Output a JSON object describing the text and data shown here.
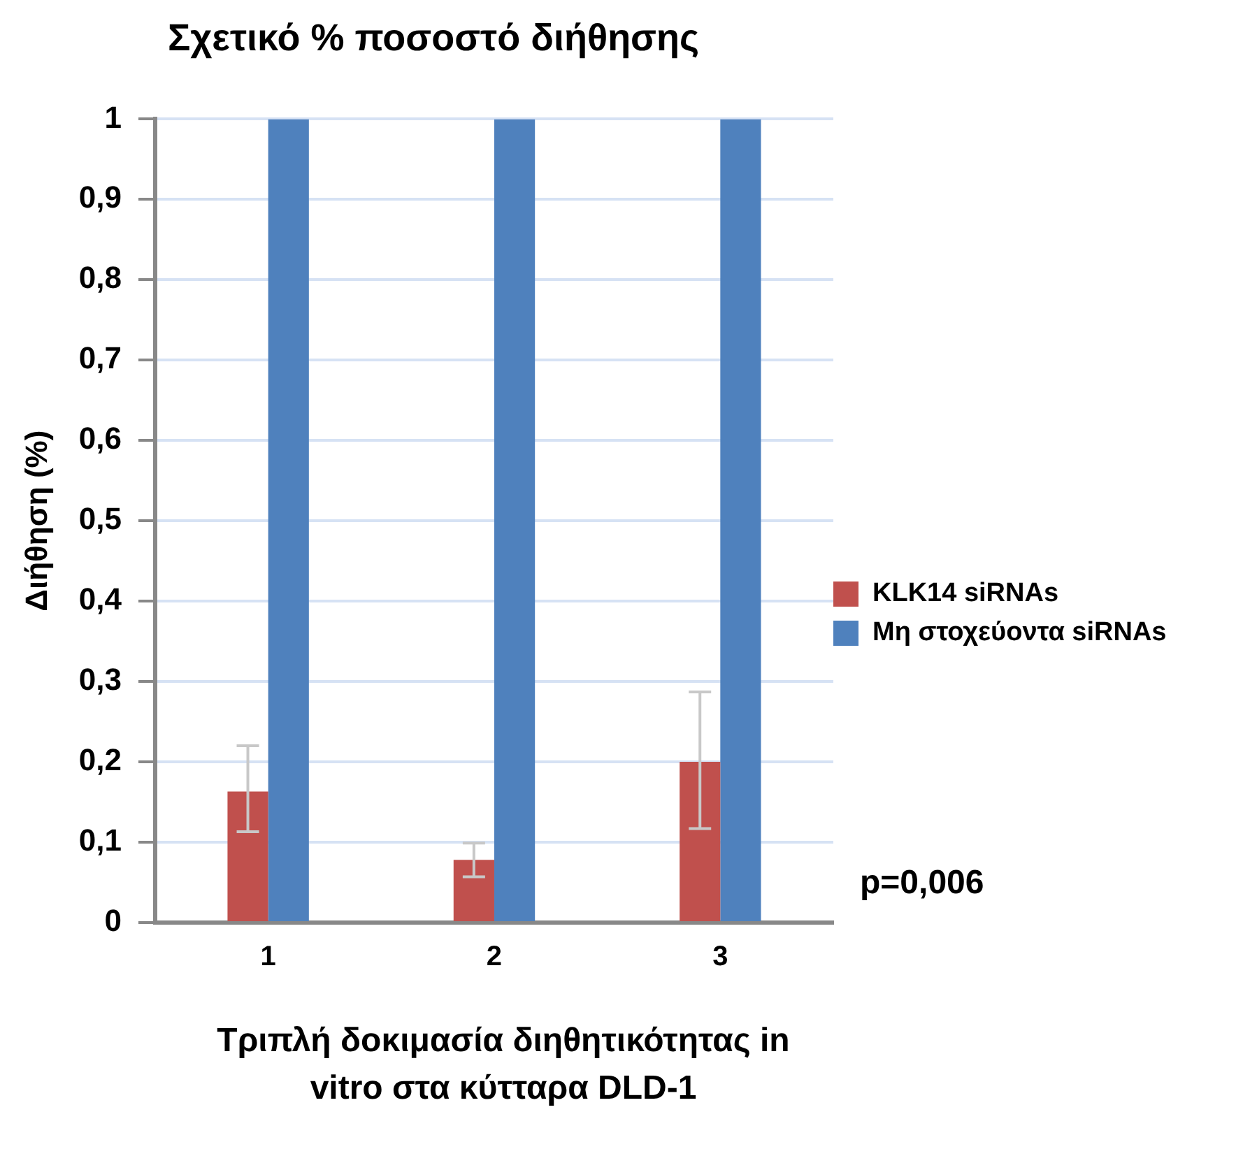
{
  "chart_data": {
    "type": "bar",
    "title": "Σχετικό % ποσοστό διήθησης",
    "xlabel": "Τριπλή δοκιμασία διηθητικότητας in vitro στα κύτταρα DLD-1",
    "ylabel": "Διήθηση (%)",
    "categories": [
      "1",
      "2",
      "3"
    ],
    "series": [
      {
        "name": "KLK14 siRNAs",
        "color": "#c0504d",
        "values": [
          0.163,
          0.078,
          0.2
        ],
        "errors": [
          [
            0.113,
            0.22
          ],
          [
            0.057,
            0.099
          ],
          [
            0.117,
            0.287
          ]
        ]
      },
      {
        "name": "Μη στοχεύοντα siRNAs",
        "color": "#4f81bd",
        "values": [
          1,
          1,
          1
        ]
      }
    ],
    "ylim": [
      0,
      1
    ],
    "yticks": [
      0,
      {
        "value": 0.1,
        "label": "0,1"
      },
      {
        "value": 0.2,
        "label": "0,2"
      },
      {
        "value": 0.3,
        "label": "0,3"
      },
      {
        "value": 0.4,
        "label": "0,4"
      },
      {
        "value": 0.5,
        "label": "0,5"
      },
      {
        "value": 0.6,
        "label": "0,6"
      },
      {
        "value": 0.7,
        "label": "0,7"
      },
      {
        "value": 0.8,
        "label": "0,8"
      },
      {
        "value": 0.9,
        "label": "0,9"
      },
      1
    ],
    "grid": "y",
    "legend": "right",
    "annotations": [
      "p=0,006"
    ]
  }
}
